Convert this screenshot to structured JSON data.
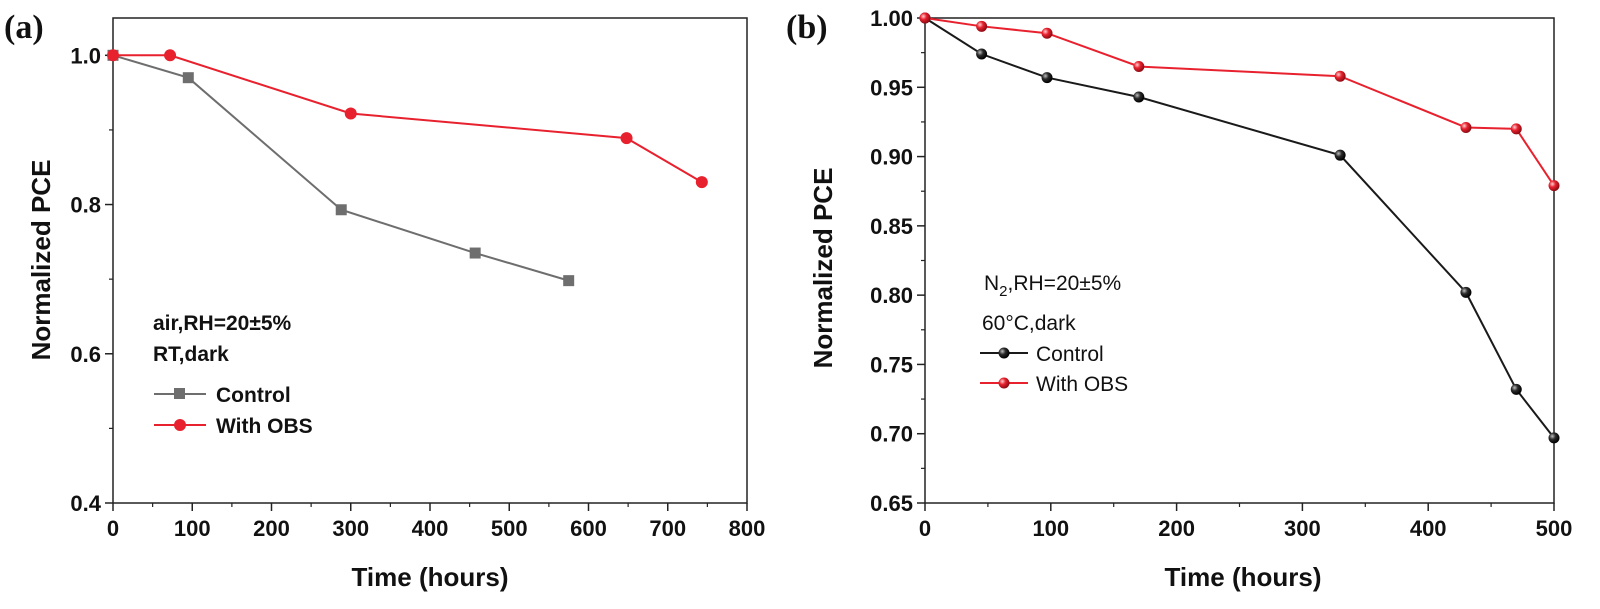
{
  "chart_data": [
    {
      "id": "a",
      "type": "line",
      "panel_label": "(a)",
      "xlabel": "Time (hours)",
      "ylabel": "Normalized PCE",
      "xlim": [
        0,
        800
      ],
      "ylim": [
        0.4,
        1.05
      ],
      "xticks": [
        0,
        100,
        200,
        300,
        400,
        500,
        600,
        700,
        800
      ],
      "xtick_labels": [
        "0",
        "100",
        "200",
        "300",
        "400",
        "500",
        "600",
        "700",
        "800"
      ],
      "yticks": [
        0.4,
        0.6,
        0.8,
        1.0
      ],
      "ytick_labels": [
        "0.4",
        "0.6",
        "0.8",
        "1.0"
      ],
      "annotation": [
        "air,RH=20±5%",
        "RT,dark"
      ],
      "legend_position": "middle-left",
      "series": [
        {
          "name": "Control",
          "color": "#6e6e6e",
          "marker": "square",
          "x": [
            0,
            95,
            288,
            457,
            575
          ],
          "y": [
            1.0,
            0.97,
            0.793,
            0.735,
            0.698
          ]
        },
        {
          "name": "With OBS",
          "color": "#e8212e",
          "marker": "circle",
          "x": [
            0,
            72,
            300,
            648,
            743
          ],
          "y": [
            1.0,
            1.0,
            0.922,
            0.889,
            0.83
          ]
        }
      ]
    },
    {
      "id": "b",
      "type": "line",
      "panel_label": "(b)",
      "xlabel": "Time (hours)",
      "ylabel": "Normalized PCE",
      "xlim": [
        0,
        500
      ],
      "ylim": [
        0.65,
        1.0
      ],
      "xticks": [
        0,
        100,
        200,
        300,
        400,
        500
      ],
      "xtick_labels": [
        "0",
        "100",
        "200",
        "300",
        "400",
        "500"
      ],
      "yticks": [
        0.65,
        0.7,
        0.75,
        0.8,
        0.85,
        0.9,
        0.95,
        1.0
      ],
      "ytick_labels": [
        "0.65",
        "0.70",
        "0.75",
        "0.80",
        "0.85",
        "0.90",
        "0.95",
        "1.00"
      ],
      "annotation_line1": {
        "prefix": "N",
        "subscript": "2",
        "suffix": ",RH=20±5%"
      },
      "annotation_line2": "60°C,dark",
      "legend_position": "middle-left",
      "series": [
        {
          "name": "Control",
          "color": "#1a1a1a",
          "marker": "sphere",
          "x": [
            0,
            45,
            97,
            170,
            330,
            430,
            470,
            500
          ],
          "y": [
            1.0,
            0.974,
            0.957,
            0.943,
            0.901,
            0.802,
            0.732,
            0.697
          ]
        },
        {
          "name": "With OBS",
          "color": "#e8212e",
          "marker": "sphere",
          "x": [
            0,
            45,
            97,
            170,
            330,
            430,
            470,
            500
          ],
          "y": [
            1.0,
            0.994,
            0.989,
            0.965,
            0.958,
            0.921,
            0.92,
            0.879
          ]
        }
      ]
    }
  ]
}
